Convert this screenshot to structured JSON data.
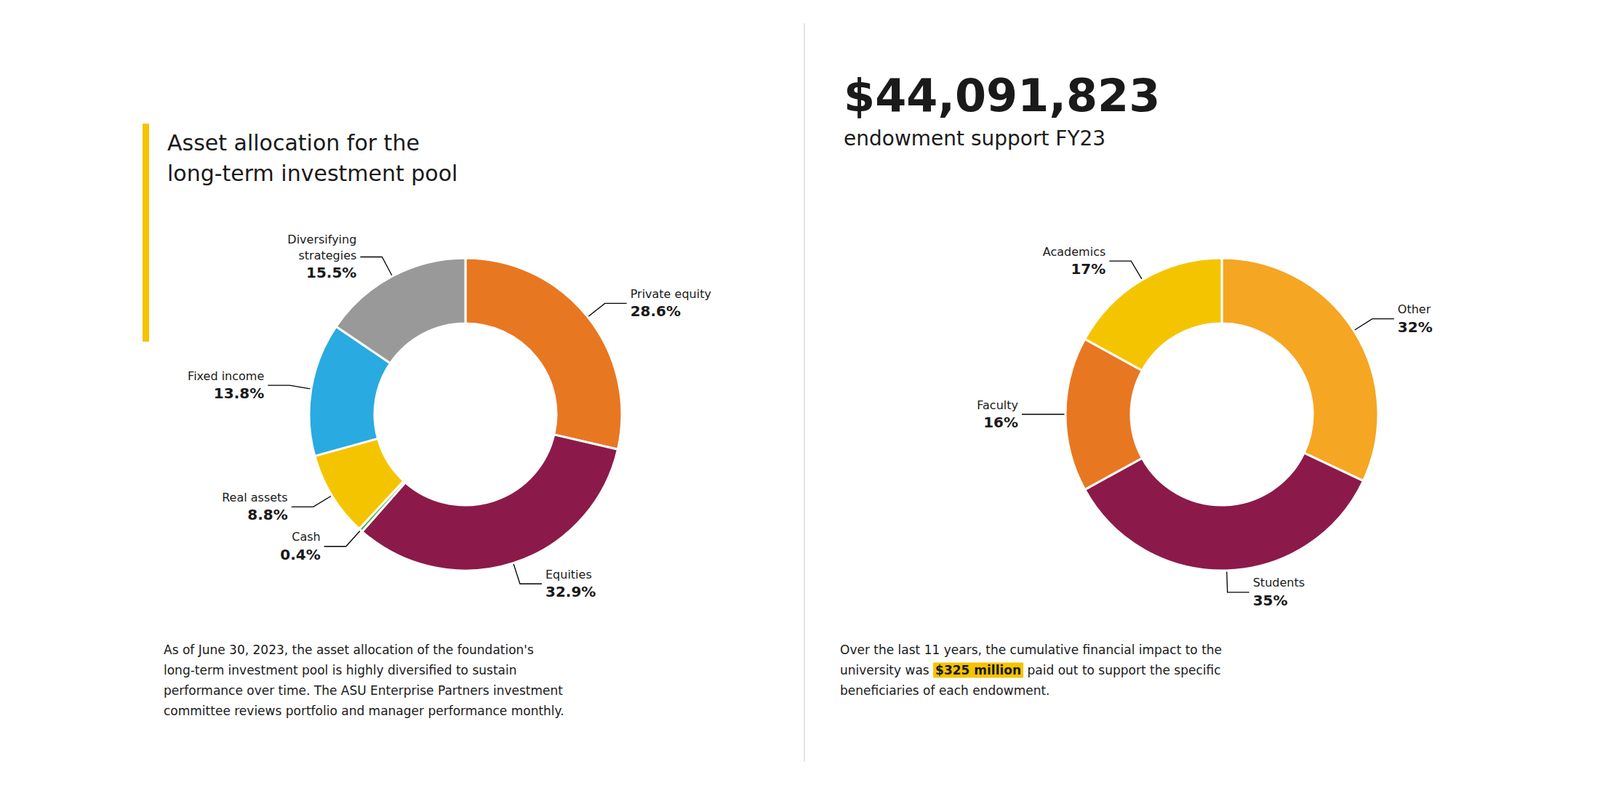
{
  "chart_data": [
    {
      "type": "pie",
      "title": "Asset allocation for the\nlong-term investment pool",
      "categories": [
        "Private equity",
        "Equities",
        "Cash",
        "Real assets",
        "Fixed income",
        "Diversifying\nstrategies"
      ],
      "values": [
        28.6,
        32.9,
        0.4,
        8.8,
        13.8,
        15.5
      ],
      "colors": [
        "#E87722",
        "#8B1A4A",
        "#4DB848",
        "#F5C400",
        "#29AAE1",
        "#999999"
      ],
      "data_labels": true,
      "value_labels": [
        "28.6%",
        "32.9%",
        "0.4%",
        "8.8%",
        "13.8%",
        "15.5%"
      ],
      "annotations": [
        {
          "text": "As of June 30, 2023, the asset allocation of the foundation's\nlong-term investment pool is highly diversified to sustain\nperformance over time. The ASU Enterprise Partners investment\ncommittee reviews portfolio and manager performance monthly."
        }
      ]
    },
    {
      "type": "pie",
      "title": "$44,091,823",
      "subtitle": "endowment support FY23",
      "categories": [
        "Other",
        "Students",
        "Faculty",
        "Academics"
      ],
      "values": [
        32,
        35,
        16,
        17
      ],
      "colors": [
        "#F5A623",
        "#8B1A4A",
        "#E87722",
        "#F5C400"
      ],
      "data_labels": true,
      "value_labels": [
        "32%",
        "35%",
        "16%",
        "17%"
      ],
      "annotations": [
        {
          "text": "Over the last 11 years, the cumulative financial impact to the\nuniversity was "
        },
        {
          "text": "$325 million",
          "color": "#F5C400"
        },
        {
          "text": " paid out to support the specific\nbeneficiaries of each endowment."
        }
      ]
    }
  ]
}
